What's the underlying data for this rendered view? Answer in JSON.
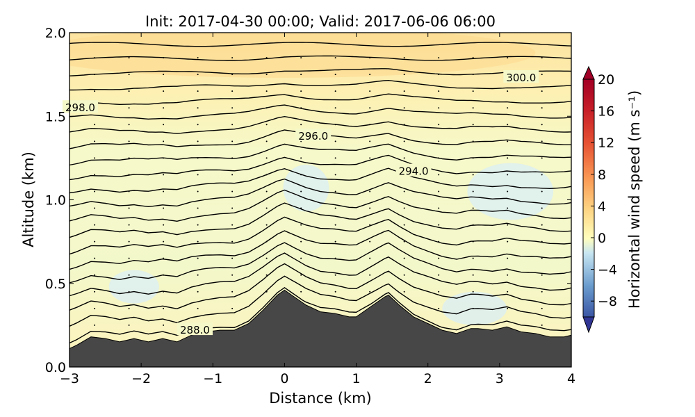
{
  "chart_data": {
    "type": "heatmap",
    "title": "Init: 2017-04-30 00:00; Valid: 2017-06-06 06:00",
    "xlabel": "Distance (km)",
    "ylabel": "Altitude (km)",
    "xlim": [
      -3,
      4
    ],
    "ylim": [
      0,
      2
    ],
    "x_ticks": [
      -3,
      -2,
      -1,
      0,
      1,
      2,
      3,
      4
    ],
    "x_tick_labels": [
      "−3",
      "−2",
      "−1",
      "0",
      "1",
      "2",
      "3",
      "4"
    ],
    "y_ticks": [
      0.0,
      0.5,
      1.0,
      1.5,
      2.0
    ],
    "y_tick_labels": [
      "0.0",
      "0.5",
      "1.0",
      "1.5",
      "2.0"
    ],
    "colorbar": {
      "label": "Horizontal wind speed (m s⁻¹)",
      "range": [
        -10,
        20
      ],
      "ticks": [
        -8,
        -4,
        0,
        4,
        8,
        12,
        16,
        20
      ],
      "tick_labels": [
        "−8",
        "−4",
        "0",
        "4",
        "8",
        "12",
        "16",
        "20"
      ],
      "extend": "both"
    },
    "terrain": {
      "x": [
        -3.0,
        -2.9,
        -2.7,
        -2.5,
        -2.3,
        -2.1,
        -1.9,
        -1.7,
        -1.5,
        -1.3,
        -1.1,
        -0.9,
        -0.7,
        -0.5,
        -0.3,
        -0.1,
        0.0,
        0.1,
        0.3,
        0.5,
        0.7,
        0.9,
        1.0,
        1.2,
        1.4,
        1.45,
        1.6,
        1.8,
        2.0,
        2.2,
        2.4,
        2.6,
        2.7,
        2.9,
        3.1,
        3.3,
        3.5,
        3.7,
        3.9,
        4.0
      ],
      "y": [
        0.11,
        0.13,
        0.18,
        0.17,
        0.15,
        0.17,
        0.15,
        0.17,
        0.15,
        0.19,
        0.21,
        0.22,
        0.22,
        0.26,
        0.34,
        0.43,
        0.46,
        0.43,
        0.37,
        0.33,
        0.32,
        0.3,
        0.3,
        0.36,
        0.42,
        0.43,
        0.37,
        0.3,
        0.26,
        0.22,
        0.2,
        0.23,
        0.23,
        0.22,
        0.24,
        0.21,
        0.2,
        0.18,
        0.18,
        0.19
      ]
    },
    "contour_labels": [
      {
        "x": -2.85,
        "y": 1.55,
        "value": "298.0"
      },
      {
        "x": 0.4,
        "y": 1.38,
        "value": "296.0"
      },
      {
        "x": 1.8,
        "y": 1.17,
        "value": "294.0"
      },
      {
        "x": 3.3,
        "y": 1.73,
        "value": "300.0"
      },
      {
        "x": -1.25,
        "y": 0.22,
        "value": "288.0"
      }
    ],
    "wind_fill_regions": [
      {
        "x": 0.3,
        "y": 1.07,
        "rx": 0.32,
        "ry": 0.14,
        "value": -2
      },
      {
        "x": 3.15,
        "y": 1.05,
        "rx": 0.6,
        "ry": 0.17,
        "value": -2
      },
      {
        "x": 2.65,
        "y": 0.35,
        "rx": 0.45,
        "ry": 0.1,
        "value": -2
      },
      {
        "x": -2.1,
        "y": 0.48,
        "rx": 0.35,
        "ry": 0.1,
        "value": -2
      },
      {
        "x": 0.0,
        "y": 1.88,
        "rx": 3.5,
        "ry": 0.15,
        "value": 3
      }
    ]
  }
}
